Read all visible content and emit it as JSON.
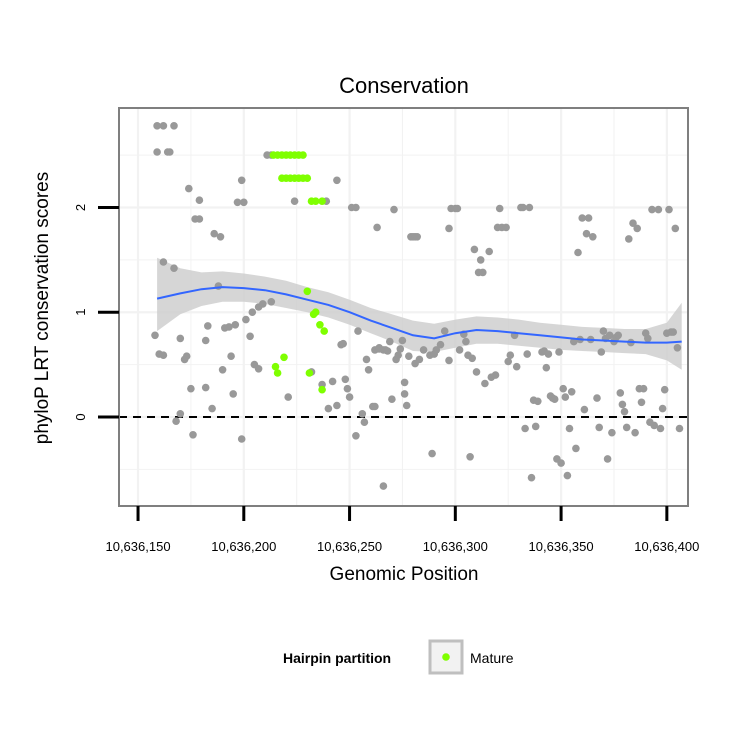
{
  "chart_data": {
    "type": "scatter",
    "title": "Conservation",
    "xlabel": "Genomic Position",
    "ylabel": "phyloP LRT conservation scores",
    "xlim": [
      10636141,
      10636410
    ],
    "ylim": [
      -0.85,
      2.95
    ],
    "x_ticks": [
      10636150,
      10636200,
      10636250,
      10636300,
      10636350,
      10636400
    ],
    "x_tick_labels": [
      "10,636,150",
      "10,636,200",
      "10,636,250",
      "10,636,300",
      "10,636,350",
      "10,636,400"
    ],
    "y_ticks": [
      0,
      1,
      2
    ],
    "y_tick_labels": [
      "0",
      "1",
      "2"
    ],
    "reference_line": {
      "y": 0,
      "style": "dashed"
    },
    "legend": {
      "title": "Hairpin partition",
      "entries": [
        {
          "label": "Mature",
          "color": "#7fff00"
        }
      ],
      "position": "bottom"
    },
    "colors": {
      "other": "#999999",
      "mature": "#7fff00",
      "smooth": "#3366ff",
      "ribbon": "#cccccc",
      "frame": "#7f7f7f",
      "grid": "#f2f2f2"
    },
    "series": [
      {
        "name": "Other",
        "points": [
          [
            10636159,
            2.78
          ],
          [
            10636162,
            2.78
          ],
          [
            10636159,
            2.53
          ],
          [
            10636164,
            2.53
          ],
          [
            10636165,
            2.53
          ],
          [
            10636167,
            2.78
          ],
          [
            10636158,
            0.78
          ],
          [
            10636160,
            0.6
          ],
          [
            10636162,
            0.59
          ],
          [
            10636162,
            1.48
          ],
          [
            10636167,
            1.42
          ],
          [
            10636170,
            0.75
          ],
          [
            10636168,
            -0.04
          ],
          [
            10636170,
            0.03
          ],
          [
            10636172,
            0.55
          ],
          [
            10636173,
            0.58
          ],
          [
            10636175,
            0.27
          ],
          [
            10636176,
            -0.17
          ],
          [
            10636174,
            2.18
          ],
          [
            10636177,
            1.89
          ],
          [
            10636179,
            1.89
          ],
          [
            10636179,
            2.07
          ],
          [
            10636182,
            0.73
          ],
          [
            10636183,
            0.87
          ],
          [
            10636182,
            0.28
          ],
          [
            10636185,
            0.08
          ],
          [
            10636186,
            1.75
          ],
          [
            10636189,
            1.72
          ],
          [
            10636188,
            1.25
          ],
          [
            10636190,
            0.45
          ],
          [
            10636191,
            0.85
          ],
          [
            10636193,
            0.86
          ],
          [
            10636194,
            0.58
          ],
          [
            10636195,
            0.22
          ],
          [
            10636196,
            0.88
          ],
          [
            10636197,
            2.05
          ],
          [
            10636199,
            2.26
          ],
          [
            10636200,
            2.05
          ],
          [
            10636199,
            -0.21
          ],
          [
            10636201,
            0.93
          ],
          [
            10636203,
            0.77
          ],
          [
            10636204,
            1.0
          ],
          [
            10636205,
            0.5
          ],
          [
            10636207,
            0.46
          ],
          [
            10636207,
            1.05
          ],
          [
            10636209,
            1.08
          ],
          [
            10636211,
            2.5
          ],
          [
            10636213,
            2.5
          ],
          [
            10636213,
            1.1
          ],
          [
            10636221,
            0.19
          ],
          [
            10636224,
            2.06
          ],
          [
            10636232,
            0.43
          ],
          [
            10636237,
            0.31
          ],
          [
            10636239,
            2.06
          ],
          [
            10636240,
            0.08
          ],
          [
            10636242,
            0.34
          ],
          [
            10636244,
            0.11
          ],
          [
            10636244,
            2.26
          ],
          [
            10636246,
            0.69
          ],
          [
            10636247,
            0.7
          ],
          [
            10636248,
            0.36
          ],
          [
            10636249,
            0.27
          ],
          [
            10636250,
            0.19
          ],
          [
            10636251,
            2.0
          ],
          [
            10636253,
            2.0
          ],
          [
            10636253,
            -0.18
          ],
          [
            10636254,
            0.82
          ],
          [
            10636256,
            0.03
          ],
          [
            10636257,
            -0.05
          ],
          [
            10636258,
            0.55
          ],
          [
            10636259,
            0.45
          ],
          [
            10636261,
            0.1
          ],
          [
            10636262,
            0.1
          ],
          [
            10636262,
            0.64
          ],
          [
            10636263,
            1.81
          ],
          [
            10636264,
            0.66
          ],
          [
            10636264,
            0.65
          ],
          [
            10636266,
            0.64
          ],
          [
            10636266,
            -0.66
          ],
          [
            10636267,
            0.64
          ],
          [
            10636268,
            0.63
          ],
          [
            10636269,
            0.72
          ],
          [
            10636270,
            0.17
          ],
          [
            10636271,
            1.98
          ],
          [
            10636272,
            0.55
          ],
          [
            10636273,
            0.59
          ],
          [
            10636274,
            0.65
          ],
          [
            10636275,
            0.73
          ],
          [
            10636276,
            0.33
          ],
          [
            10636276,
            0.22
          ],
          [
            10636277,
            0.11
          ],
          [
            10636278,
            0.58
          ],
          [
            10636279,
            1.72
          ],
          [
            10636280,
            1.72
          ],
          [
            10636281,
            1.72
          ],
          [
            10636282,
            1.72
          ],
          [
            10636281,
            0.51
          ],
          [
            10636283,
            0.55
          ],
          [
            10636285,
            0.64
          ],
          [
            10636288,
            0.59
          ],
          [
            10636290,
            0.6
          ],
          [
            10636291,
            0.64
          ],
          [
            10636289,
            -0.35
          ],
          [
            10636293,
            0.69
          ],
          [
            10636295,
            0.82
          ],
          [
            10636297,
            0.54
          ],
          [
            10636297,
            1.8
          ],
          [
            10636298,
            1.99
          ],
          [
            10636300,
            1.99
          ],
          [
            10636301,
            1.99
          ],
          [
            10636302,
            0.64
          ],
          [
            10636304,
            0.79
          ],
          [
            10636305,
            0.72
          ],
          [
            10636306,
            0.59
          ],
          [
            10636307,
            -0.38
          ],
          [
            10636308,
            0.56
          ],
          [
            10636309,
            1.6
          ],
          [
            10636310,
            0.43
          ],
          [
            10636311,
            1.38
          ],
          [
            10636312,
            1.5
          ],
          [
            10636313,
            1.38
          ],
          [
            10636314,
            0.32
          ],
          [
            10636316,
            1.58
          ],
          [
            10636317,
            0.38
          ],
          [
            10636319,
            0.4
          ],
          [
            10636320,
            1.81
          ],
          [
            10636321,
            1.99
          ],
          [
            10636322,
            1.81
          ],
          [
            10636324,
            1.81
          ],
          [
            10636325,
            0.53
          ],
          [
            10636326,
            0.59
          ],
          [
            10636328,
            0.78
          ],
          [
            10636329,
            0.48
          ],
          [
            10636331,
            2.0
          ],
          [
            10636332,
            2.0
          ],
          [
            10636333,
            -0.11
          ],
          [
            10636334,
            0.6
          ],
          [
            10636335,
            2.0
          ],
          [
            10636336,
            -0.58
          ],
          [
            10636337,
            0.16
          ],
          [
            10636338,
            -0.09
          ],
          [
            10636339,
            0.15
          ],
          [
            10636341,
            0.62
          ],
          [
            10636342,
            0.63
          ],
          [
            10636343,
            0.47
          ],
          [
            10636344,
            0.6
          ],
          [
            10636345,
            0.2
          ],
          [
            10636346,
            0.18
          ],
          [
            10636347,
            0.17
          ],
          [
            10636348,
            -0.4
          ],
          [
            10636349,
            0.62
          ],
          [
            10636350,
            -0.44
          ],
          [
            10636351,
            0.27
          ],
          [
            10636352,
            0.19
          ],
          [
            10636353,
            -0.56
          ],
          [
            10636354,
            -0.11
          ],
          [
            10636355,
            0.24
          ],
          [
            10636356,
            0.72
          ],
          [
            10636357,
            -0.3
          ],
          [
            10636358,
            1.57
          ],
          [
            10636359,
            0.74
          ],
          [
            10636360,
            1.9
          ],
          [
            10636361,
            0.07
          ],
          [
            10636362,
            1.75
          ],
          [
            10636363,
            1.9
          ],
          [
            10636364,
            0.74
          ],
          [
            10636365,
            1.72
          ],
          [
            10636367,
            0.18
          ],
          [
            10636368,
            -0.1
          ],
          [
            10636369,
            0.62
          ],
          [
            10636370,
            0.82
          ],
          [
            10636371,
            0.75
          ],
          [
            10636372,
            -0.4
          ],
          [
            10636373,
            0.78
          ],
          [
            10636374,
            -0.15
          ],
          [
            10636375,
            0.72
          ],
          [
            10636376,
            0.76
          ],
          [
            10636377,
            0.78
          ],
          [
            10636378,
            0.23
          ],
          [
            10636379,
            0.12
          ],
          [
            10636380,
            0.05
          ],
          [
            10636381,
            -0.1
          ],
          [
            10636382,
            1.7
          ],
          [
            10636383,
            0.71
          ],
          [
            10636384,
            1.85
          ],
          [
            10636385,
            -0.15
          ],
          [
            10636386,
            1.8
          ],
          [
            10636387,
            0.27
          ],
          [
            10636388,
            0.14
          ],
          [
            10636389,
            0.27
          ],
          [
            10636390,
            0.8
          ],
          [
            10636391,
            0.75
          ],
          [
            10636392,
            -0.05
          ],
          [
            10636393,
            1.98
          ],
          [
            10636394,
            -0.08
          ],
          [
            10636396,
            1.98
          ],
          [
            10636397,
            -0.11
          ],
          [
            10636398,
            0.08
          ],
          [
            10636399,
            0.26
          ],
          [
            10636400,
            0.8
          ],
          [
            10636401,
            1.98
          ],
          [
            10636402,
            0.81
          ],
          [
            10636403,
            0.81
          ],
          [
            10636404,
            1.8
          ],
          [
            10636405,
            0.66
          ],
          [
            10636406,
            -0.11
          ]
        ]
      },
      {
        "name": "Mature",
        "points": [
          [
            10636214,
            2.5
          ],
          [
            10636216,
            2.5
          ],
          [
            10636218,
            2.5
          ],
          [
            10636220,
            2.5
          ],
          [
            10636222,
            2.5
          ],
          [
            10636224,
            2.5
          ],
          [
            10636226,
            2.5
          ],
          [
            10636228,
            2.5
          ],
          [
            10636218,
            2.28
          ],
          [
            10636220,
            2.28
          ],
          [
            10636222,
            2.28
          ],
          [
            10636224,
            2.28
          ],
          [
            10636226,
            2.28
          ],
          [
            10636228,
            2.28
          ],
          [
            10636230,
            2.28
          ],
          [
            10636232,
            2.06
          ],
          [
            10636234,
            2.06
          ],
          [
            10636237,
            2.06
          ],
          [
            10636230,
            1.2
          ],
          [
            10636233,
            0.98
          ],
          [
            10636234,
            1.0
          ],
          [
            10636236,
            0.88
          ],
          [
            10636238,
            0.82
          ],
          [
            10636237,
            0.26
          ],
          [
            10636219,
            0.57
          ],
          [
            10636215,
            0.48
          ],
          [
            10636216,
            0.42
          ],
          [
            10636231,
            0.42
          ]
        ]
      }
    ],
    "smooth": {
      "x": [
        10636159,
        10636170,
        10636180,
        10636190,
        10636200,
        10636210,
        10636220,
        10636230,
        10636240,
        10636250,
        10636260,
        10636270,
        10636280,
        10636290,
        10636300,
        10636310,
        10636320,
        10636330,
        10636340,
        10636350,
        10636360,
        10636370,
        10636380,
        10636390,
        10636400,
        10636407
      ],
      "y": [
        1.13,
        1.18,
        1.22,
        1.24,
        1.23,
        1.21,
        1.17,
        1.12,
        1.07,
        1.0,
        0.92,
        0.85,
        0.78,
        0.75,
        0.8,
        0.83,
        0.82,
        0.8,
        0.78,
        0.76,
        0.74,
        0.73,
        0.72,
        0.71,
        0.71,
        0.72
      ],
      "lower": [
        0.82,
        0.98,
        1.06,
        1.1,
        1.1,
        1.08,
        1.04,
        1.0,
        0.95,
        0.88,
        0.8,
        0.72,
        0.63,
        0.62,
        0.66,
        0.7,
        0.7,
        0.68,
        0.66,
        0.64,
        0.63,
        0.62,
        0.61,
        0.6,
        0.54,
        0.45
      ],
      "upper": [
        1.52,
        1.42,
        1.38,
        1.39,
        1.37,
        1.34,
        1.3,
        1.24,
        1.19,
        1.12,
        1.04,
        0.98,
        0.92,
        0.89,
        0.93,
        0.96,
        0.95,
        0.93,
        0.9,
        0.88,
        0.86,
        0.85,
        0.84,
        0.84,
        0.9,
        1.09
      ]
    }
  }
}
